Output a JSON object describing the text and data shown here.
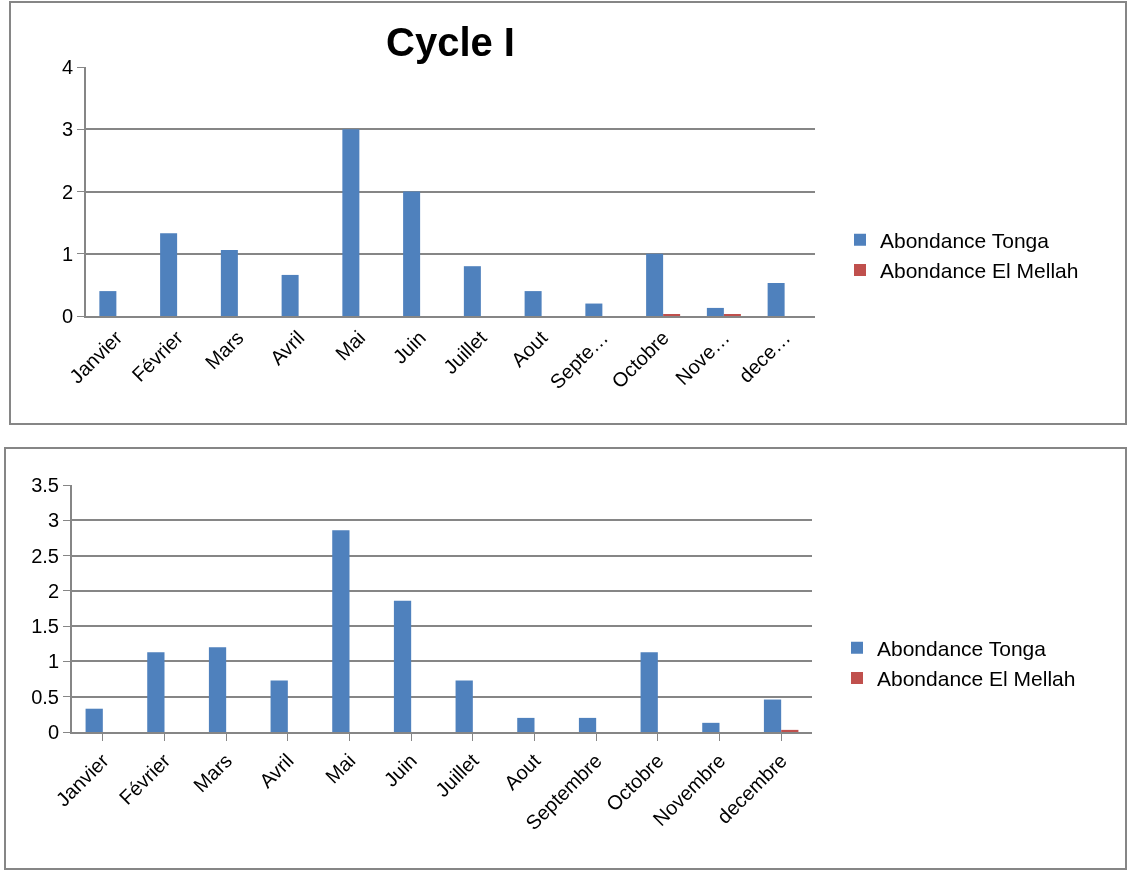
{
  "chart_data": [
    {
      "type": "bar",
      "title": "Cycle I",
      "categories": [
        "Janvier",
        "Février",
        "Mars",
        "Avril",
        "Mai",
        "Juin",
        "Juillet",
        "Aout",
        "Septe…",
        "Octobre",
        "Nove…",
        "dece…"
      ],
      "series": [
        {
          "name": "Abondance Tonga",
          "color": "#4f81bd",
          "values": [
            0.4,
            1.33,
            1.06,
            0.66,
            3.0,
            2.0,
            0.8,
            0.4,
            0.2,
            1.0,
            0.13,
            0.53
          ]
        },
        {
          "name": "Abondance El Mellah",
          "color": "#c0504d",
          "values": [
            0,
            0,
            0,
            0,
            0,
            0,
            0,
            0,
            0,
            0.03,
            0.03,
            0
          ]
        }
      ],
      "ylim": [
        0,
        4
      ],
      "yticks": [
        0,
        1,
        2,
        3,
        4
      ],
      "grid": "y",
      "legend": "right"
    },
    {
      "type": "bar",
      "categories": [
        "Janvier",
        "Février",
        "Mars",
        "Avril",
        "Mai",
        "Juin",
        "Juillet",
        "Aout",
        "Septembre",
        "Octobre",
        "Novembre",
        "decembre"
      ],
      "series": [
        {
          "name": "Abondance Tonga",
          "color": "#4f81bd",
          "values": [
            0.33,
            1.13,
            1.2,
            0.73,
            2.86,
            1.86,
            0.73,
            0.2,
            0.2,
            1.13,
            0.13,
            0.46
          ]
        },
        {
          "name": "Abondance El Mellah",
          "color": "#c0504d",
          "values": [
            0,
            0,
            0,
            0,
            0,
            0,
            0,
            0,
            0,
            0,
            0,
            0.03
          ]
        }
      ],
      "ylim": [
        0,
        3.5
      ],
      "yticks": [
        0,
        0.5,
        1,
        1.5,
        2,
        2.5,
        3,
        3.5
      ],
      "grid": "y",
      "legend": "right"
    }
  ]
}
